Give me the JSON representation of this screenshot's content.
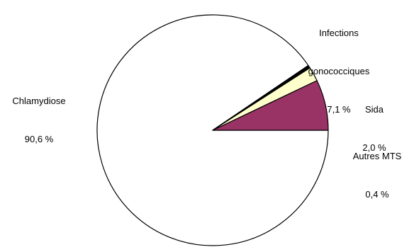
{
  "chart_data": {
    "type": "pie",
    "title": "",
    "start_angle_deg": 0,
    "direction": "counterclockwise",
    "slices": [
      {
        "label": "Infections gonococciques",
        "label_lines": [
          "Infections",
          "gonococciques"
        ],
        "value": 7.1,
        "value_text": "7,1 %",
        "color": "#993366"
      },
      {
        "label": "Sida",
        "label_lines": [
          "Sida"
        ],
        "value": 2.0,
        "value_text": "2,0 %",
        "color": "#ffffcc"
      },
      {
        "label": "Autres MTS",
        "label_lines": [
          "Autres MTS"
        ],
        "value": 0.4,
        "value_text": "0,4 %",
        "color": "#000000"
      },
      {
        "label": "Chlamydiose",
        "label_lines": [
          "Chlamydiose"
        ],
        "value": 90.6,
        "value_text": "90,6 %",
        "color": "#ffffff"
      }
    ],
    "legend": "none",
    "data_labels": "outside"
  }
}
